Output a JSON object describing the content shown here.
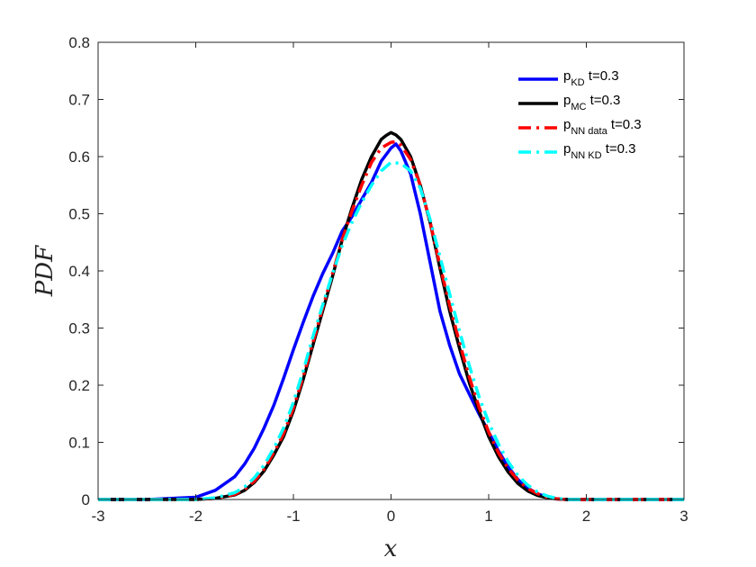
{
  "chart_data": {
    "type": "line",
    "title": "",
    "xlabel": "x",
    "ylabel": "PDF",
    "xlim": [
      -3,
      3
    ],
    "ylim": [
      0,
      0.8
    ],
    "xticks": [
      -3,
      -2,
      -1,
      0,
      1,
      2,
      3
    ],
    "xtick_labels": [
      "-3",
      "-2",
      "-1",
      "0",
      "1",
      "2",
      "3"
    ],
    "yticks": [
      0,
      0.1,
      0.2,
      0.3,
      0.4,
      0.5,
      0.6,
      0.7,
      0.8
    ],
    "ytick_labels": [
      "0",
      "0.1",
      "0.2",
      "0.3",
      "0.4",
      "0.5",
      "0.6",
      "0.7",
      "0.8"
    ],
    "grid": false,
    "legend_position": "top-right",
    "series": [
      {
        "name": "p_KD t=0.3",
        "legend_base": "p",
        "legend_sub": "KD",
        "legend_suffix": " t=0.3",
        "color": "#0000ff",
        "style": "solid",
        "x": [
          -3,
          -2.5,
          -2.0,
          -1.8,
          -1.6,
          -1.5,
          -1.4,
          -1.3,
          -1.2,
          -1.1,
          -1.0,
          -0.9,
          -0.8,
          -0.7,
          -0.6,
          -0.5,
          -0.4,
          -0.3,
          -0.2,
          -0.1,
          0.0,
          0.05,
          0.1,
          0.2,
          0.3,
          0.4,
          0.5,
          0.6,
          0.7,
          0.8,
          0.9,
          1.0,
          1.1,
          1.2,
          1.3,
          1.4,
          1.5,
          1.6,
          1.7,
          1.8,
          2.0,
          2.5,
          3
        ],
        "y": [
          0,
          0.0,
          0.004,
          0.016,
          0.04,
          0.062,
          0.09,
          0.125,
          0.165,
          0.212,
          0.262,
          0.31,
          0.355,
          0.395,
          0.43,
          0.47,
          0.495,
          0.525,
          0.555,
          0.592,
          0.615,
          0.622,
          0.61,
          0.57,
          0.5,
          0.415,
          0.33,
          0.27,
          0.22,
          0.185,
          0.15,
          0.118,
          0.085,
          0.057,
          0.035,
          0.02,
          0.01,
          0.004,
          0.001,
          0.0,
          0,
          0,
          0
        ]
      },
      {
        "name": "p_MC t=0.3",
        "legend_base": "p",
        "legend_sub": "MC",
        "legend_suffix": " t=0.3",
        "color": "#000000",
        "style": "solid",
        "x": [
          -3,
          -2.5,
          -2.0,
          -1.8,
          -1.6,
          -1.5,
          -1.4,
          -1.3,
          -1.2,
          -1.1,
          -1.0,
          -0.9,
          -0.8,
          -0.7,
          -0.6,
          -0.5,
          -0.4,
          -0.3,
          -0.2,
          -0.1,
          -0.05,
          0.0,
          0.05,
          0.1,
          0.2,
          0.3,
          0.4,
          0.5,
          0.6,
          0.7,
          0.8,
          0.9,
          1.0,
          1.1,
          1.2,
          1.3,
          1.4,
          1.5,
          1.6,
          1.7,
          1.8,
          2.0,
          2.5,
          3
        ],
        "y": [
          0,
          0.0,
          0.0,
          0.002,
          0.008,
          0.016,
          0.03,
          0.05,
          0.078,
          0.11,
          0.155,
          0.21,
          0.27,
          0.33,
          0.39,
          0.455,
          0.51,
          0.56,
          0.6,
          0.63,
          0.637,
          0.642,
          0.638,
          0.63,
          0.6,
          0.55,
          0.485,
          0.405,
          0.33,
          0.265,
          0.205,
          0.155,
          0.11,
          0.075,
          0.048,
          0.028,
          0.015,
          0.007,
          0.003,
          0.001,
          0.0,
          0,
          0,
          0
        ]
      },
      {
        "name": "p_NN data t=0.3",
        "legend_base": "p",
        "legend_sub": "NN data",
        "legend_suffix": " t=0.3",
        "color": "#ff0000",
        "style": "dashdot",
        "x": [
          -3,
          -2.5,
          -2.0,
          -1.8,
          -1.6,
          -1.5,
          -1.4,
          -1.3,
          -1.2,
          -1.1,
          -1.0,
          -0.9,
          -0.8,
          -0.7,
          -0.6,
          -0.5,
          -0.4,
          -0.3,
          -0.2,
          -0.1,
          0.0,
          0.05,
          0.1,
          0.2,
          0.3,
          0.4,
          0.5,
          0.6,
          0.7,
          0.8,
          0.9,
          1.0,
          1.1,
          1.2,
          1.3,
          1.4,
          1.5,
          1.6,
          1.7,
          1.8,
          2.0,
          2.5,
          3
        ],
        "y": [
          0,
          0.0,
          0.0,
          0.002,
          0.009,
          0.018,
          0.032,
          0.053,
          0.082,
          0.115,
          0.16,
          0.215,
          0.275,
          0.335,
          0.395,
          0.455,
          0.505,
          0.55,
          0.59,
          0.615,
          0.625,
          0.626,
          0.62,
          0.595,
          0.55,
          0.485,
          0.41,
          0.34,
          0.275,
          0.215,
          0.162,
          0.118,
          0.082,
          0.054,
          0.034,
          0.019,
          0.01,
          0.004,
          0.001,
          0.0,
          0,
          0,
          0
        ]
      },
      {
        "name": "p_NN KD t=0.3",
        "legend_base": "p",
        "legend_sub": "NN KD",
        "legend_suffix": " t=0.3",
        "color": "#00ffff",
        "style": "dashdot",
        "x": [
          -3,
          -2.5,
          -2.0,
          -1.8,
          -1.6,
          -1.5,
          -1.4,
          -1.3,
          -1.2,
          -1.1,
          -1.0,
          -0.9,
          -0.8,
          -0.7,
          -0.6,
          -0.5,
          -0.4,
          -0.3,
          -0.2,
          -0.1,
          0.0,
          0.1,
          0.2,
          0.3,
          0.4,
          0.5,
          0.6,
          0.7,
          0.8,
          0.9,
          1.0,
          1.1,
          1.2,
          1.3,
          1.4,
          1.5,
          1.6,
          1.7,
          1.8,
          2.0,
          2.5,
          3
        ],
        "y": [
          0,
          0.0,
          0.0,
          0.003,
          0.012,
          0.022,
          0.038,
          0.06,
          0.09,
          0.125,
          0.17,
          0.225,
          0.285,
          0.34,
          0.395,
          0.445,
          0.485,
          0.52,
          0.55,
          0.575,
          0.59,
          0.588,
          0.575,
          0.545,
          0.49,
          0.425,
          0.36,
          0.295,
          0.235,
          0.18,
          0.135,
          0.097,
          0.066,
          0.042,
          0.025,
          0.013,
          0.006,
          0.002,
          0.0,
          0,
          0,
          0
        ]
      }
    ]
  }
}
